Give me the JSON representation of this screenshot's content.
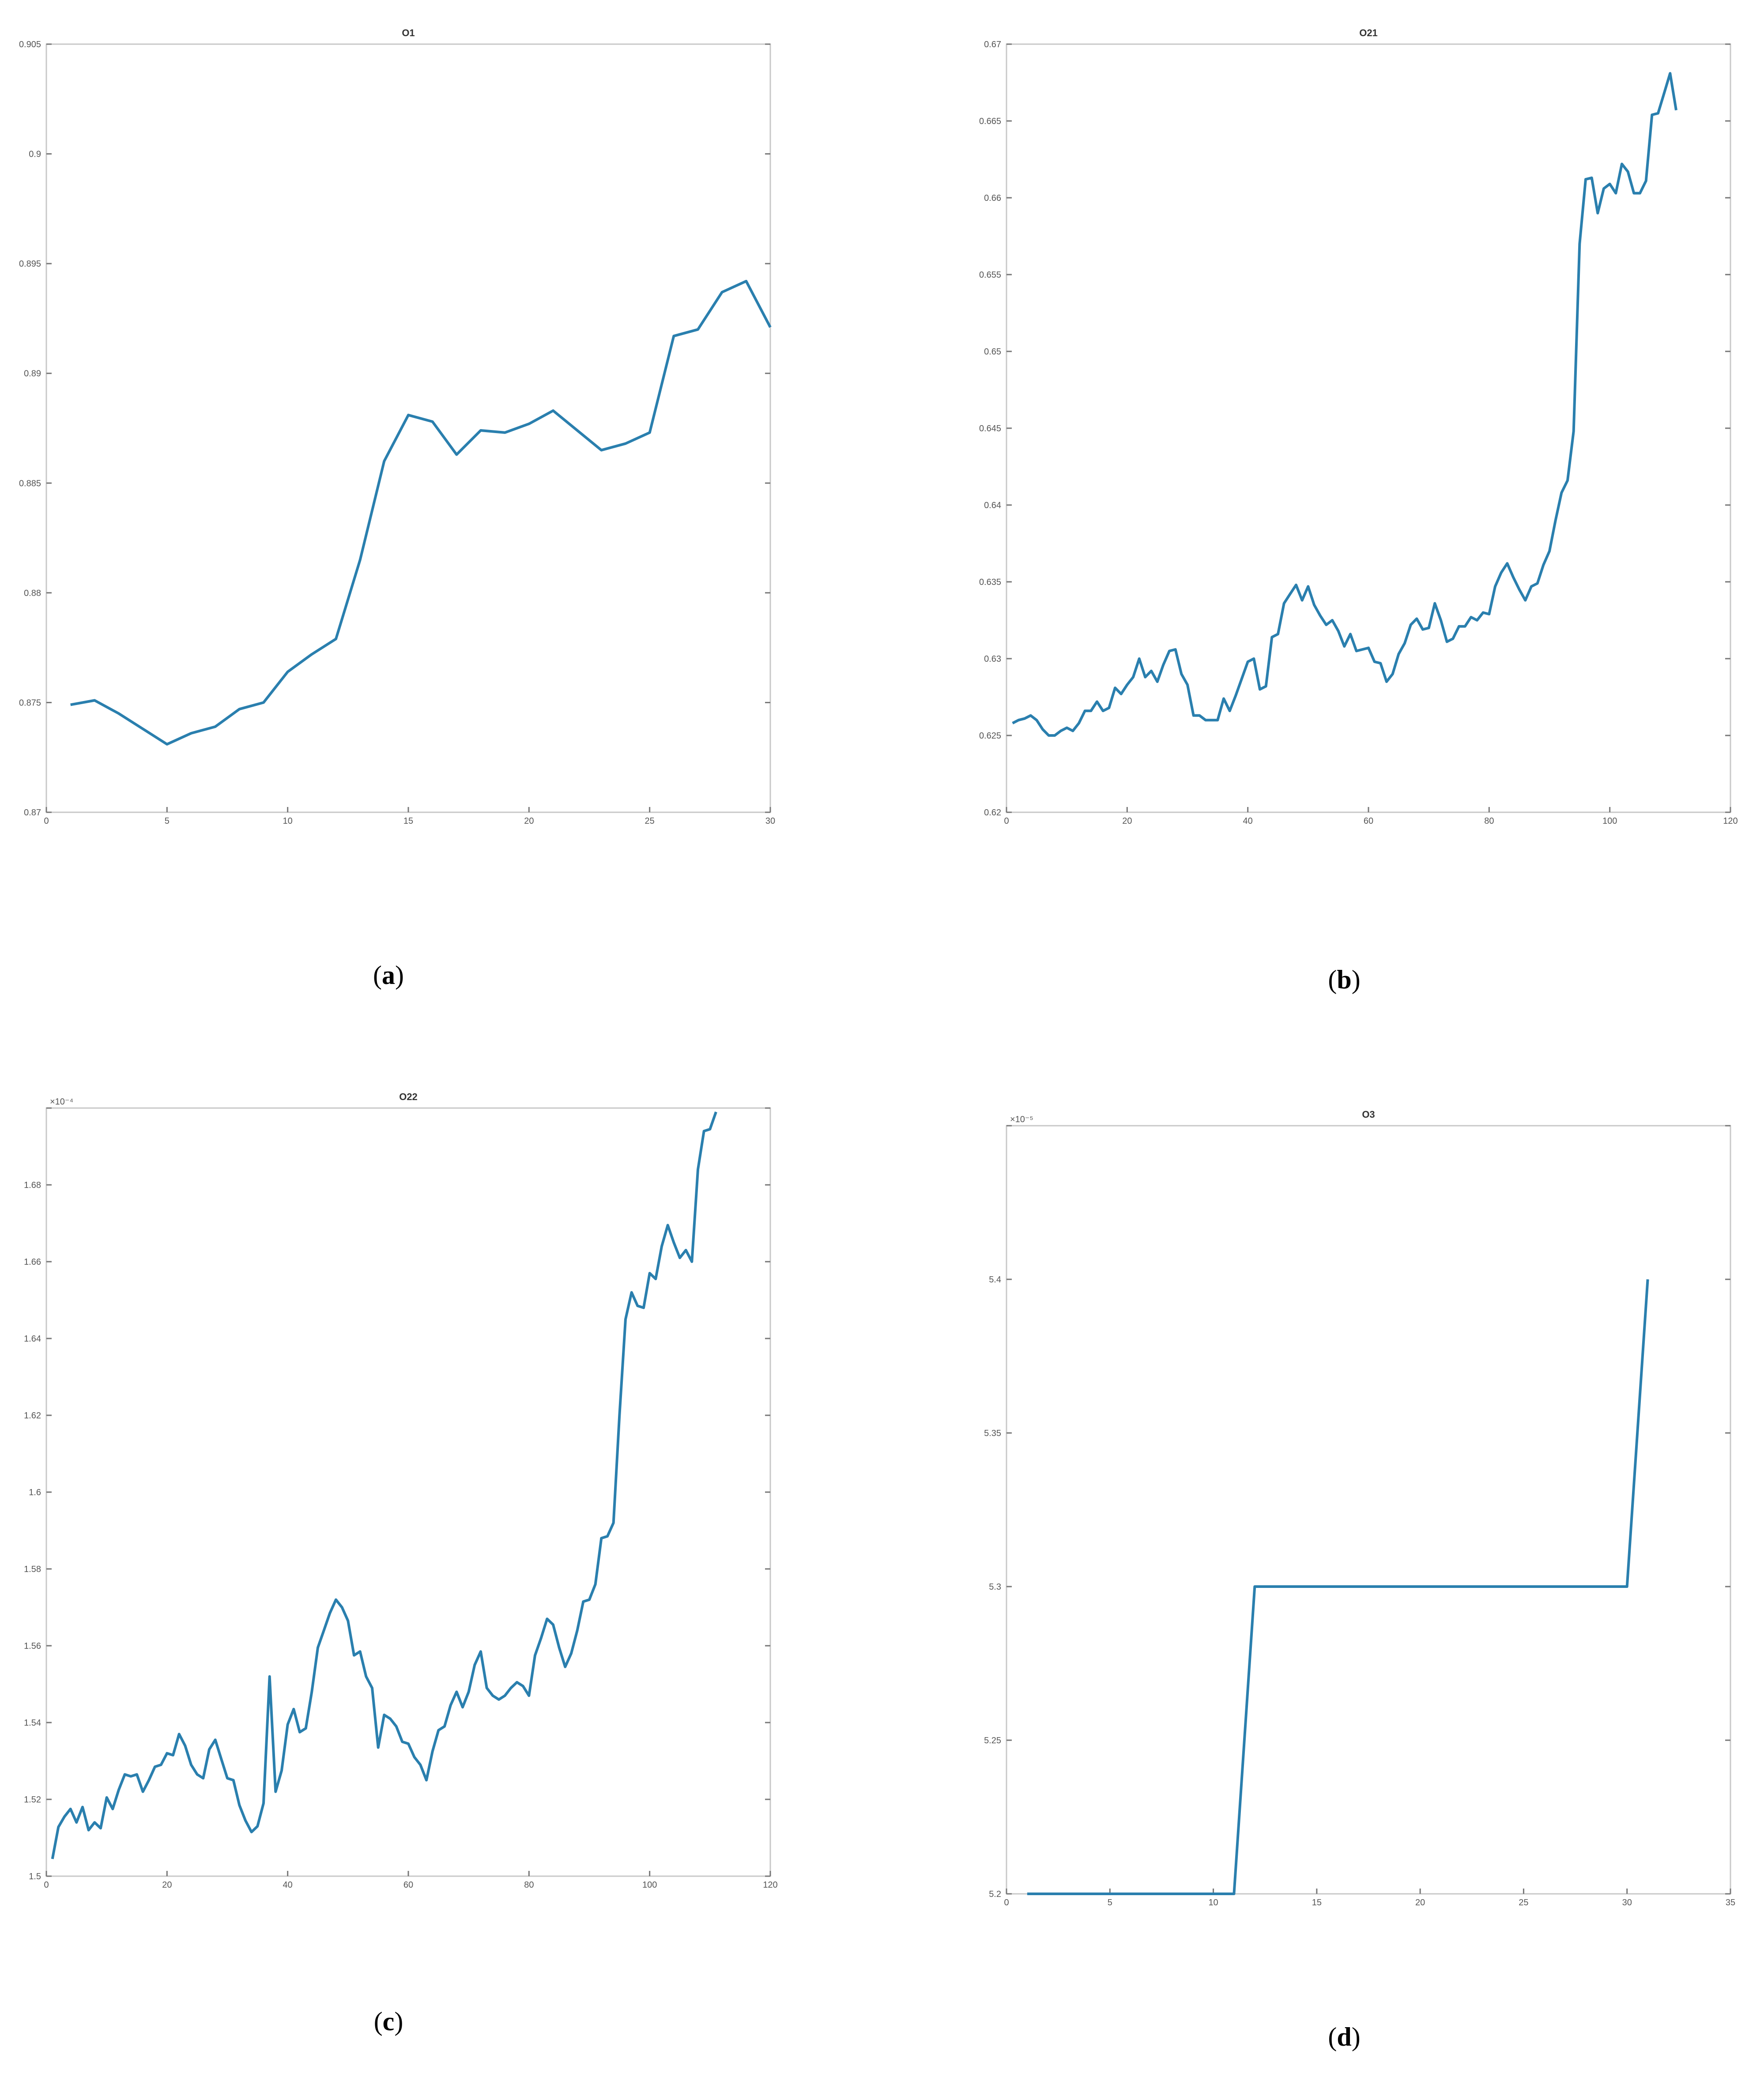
{
  "panels": [
    {
      "caption_letter": "a"
    },
    {
      "caption_letter": "b"
    },
    {
      "caption_letter": "c"
    },
    {
      "caption_letter": "d"
    }
  ],
  "chart_data": [
    {
      "type": "line",
      "title": "O1",
      "xlim": [
        0,
        30
      ],
      "ylim": [
        0.87,
        0.905
      ],
      "xticks": [
        "0",
        "5",
        "10",
        "15",
        "20",
        "25",
        "30"
      ],
      "xtick_values": [
        0,
        5,
        10,
        15,
        20,
        25,
        30
      ],
      "yticks": [
        "0.87",
        "0.875",
        "0.88",
        "0.885",
        "0.89",
        "0.895",
        "0.9",
        "0.905"
      ],
      "ytick_values": [
        0.87,
        0.875,
        0.88,
        0.885,
        0.89,
        0.895,
        0.9,
        0.905
      ],
      "y_exponent": "",
      "color": "#2a7fae",
      "x": [
        1,
        2,
        3,
        4,
        5,
        6,
        7,
        8,
        9,
        10,
        11,
        12,
        13,
        14,
        15,
        16,
        17,
        18,
        19,
        20,
        21,
        22,
        23,
        24,
        25,
        26,
        27,
        28,
        29,
        30
      ],
      "y": [
        0.8749,
        0.8751,
        0.8745,
        0.8738,
        0.8731,
        0.8736,
        0.8739,
        0.8747,
        0.875,
        0.8764,
        0.8772,
        0.8779,
        0.8815,
        0.886,
        0.8881,
        0.8878,
        0.8863,
        0.8874,
        0.8873,
        0.8877,
        0.8883,
        0.8874,
        0.8865,
        0.8868,
        0.8873,
        0.8917,
        0.892,
        0.8937,
        0.8942,
        0.8921
      ]
    },
    {
      "type": "line",
      "title": "O21",
      "xlim": [
        0,
        120
      ],
      "ylim": [
        0.62,
        0.67
      ],
      "xticks": [
        "0",
        "20",
        "40",
        "60",
        "80",
        "100",
        "120"
      ],
      "xtick_values": [
        0,
        20,
        40,
        60,
        80,
        100,
        120
      ],
      "yticks": [
        "0.62",
        "0.625",
        "0.63",
        "0.635",
        "0.64",
        "0.645",
        "0.65",
        "0.655",
        "0.66",
        "0.665",
        "0.67"
      ],
      "ytick_values": [
        0.62,
        0.625,
        0.63,
        0.635,
        0.64,
        0.645,
        0.65,
        0.655,
        0.66,
        0.665,
        0.67
      ],
      "y_exponent": "",
      "color": "#2a7fae",
      "x": [
        1,
        2,
        3,
        4,
        5,
        6,
        7,
        8,
        9,
        10,
        11,
        12,
        13,
        14,
        15,
        16,
        17,
        18,
        19,
        20,
        21,
        22,
        23,
        24,
        25,
        26,
        27,
        28,
        29,
        30,
        31,
        32,
        33,
        34,
        35,
        36,
        37,
        38,
        39,
        40,
        41,
        42,
        43,
        44,
        45,
        46,
        47,
        48,
        49,
        50,
        51,
        52,
        53,
        54,
        55,
        56,
        57,
        58,
        59,
        60,
        61,
        62,
        63,
        64,
        65,
        66,
        67,
        68,
        69,
        70,
        71,
        72,
        73,
        74,
        75,
        76,
        77,
        78,
        79,
        80,
        81,
        82,
        83,
        84,
        85,
        86,
        87,
        88,
        89,
        90,
        91,
        92,
        93,
        94,
        95,
        96,
        97,
        98,
        99,
        100,
        101,
        102,
        103,
        104,
        105,
        106,
        107,
        108,
        109,
        110,
        111
      ],
      "y": [
        0.6258,
        0.626,
        0.6261,
        0.6263,
        0.626,
        0.6254,
        0.625,
        0.625,
        0.6253,
        0.6255,
        0.6253,
        0.6258,
        0.6266,
        0.6266,
        0.6272,
        0.6266,
        0.6268,
        0.6281,
        0.6277,
        0.6283,
        0.6288,
        0.63,
        0.6288,
        0.6292,
        0.6285,
        0.6296,
        0.6305,
        0.6306,
        0.629,
        0.6283,
        0.6263,
        0.6263,
        0.626,
        0.626,
        0.626,
        0.6274,
        0.6266,
        0.6276,
        0.6287,
        0.6298,
        0.63,
        0.628,
        0.6282,
        0.6314,
        0.6316,
        0.6336,
        0.6342,
        0.6348,
        0.6338,
        0.6347,
        0.6335,
        0.6328,
        0.6322,
        0.6325,
        0.6318,
        0.6308,
        0.6316,
        0.6305,
        0.6306,
        0.6307,
        0.6298,
        0.6297,
        0.6285,
        0.629,
        0.6303,
        0.631,
        0.6322,
        0.6326,
        0.6319,
        0.632,
        0.6336,
        0.6325,
        0.6311,
        0.6313,
        0.6321,
        0.6321,
        0.6327,
        0.6325,
        0.633,
        0.6329,
        0.6347,
        0.6356,
        0.6362,
        0.6353,
        0.6345,
        0.6338,
        0.6347,
        0.6349,
        0.6361,
        0.637,
        0.639,
        0.6408,
        0.6416,
        0.6448,
        0.657,
        0.6612,
        0.6613,
        0.659,
        0.6606,
        0.6609,
        0.6603,
        0.6622,
        0.6617,
        0.6603,
        0.6603,
        0.6611,
        0.6654,
        0.6655,
        0.6668,
        0.6681,
        0.6657
      ]
    },
    {
      "type": "line",
      "title": "O22",
      "xlim": [
        0,
        120
      ],
      "ylim": [
        1.5,
        1.7
      ],
      "xticks": [
        "0",
        "20",
        "40",
        "60",
        "80",
        "100",
        "120"
      ],
      "xtick_values": [
        0,
        20,
        40,
        60,
        80,
        100,
        120
      ],
      "yticks": [
        "1.5",
        "1.52",
        "1.54",
        "1.56",
        "1.58",
        "1.6",
        "1.62",
        "1.64",
        "1.66",
        "1.68",
        "1.7"
      ],
      "ytick_values": [
        1.5,
        1.52,
        1.54,
        1.56,
        1.58,
        1.6,
        1.62,
        1.64,
        1.66,
        1.68,
        1.7
      ],
      "y_exponent": "×10⁻⁴",
      "color": "#2a7fae",
      "x": [
        1,
        2,
        3,
        4,
        5,
        6,
        7,
        8,
        9,
        10,
        11,
        12,
        13,
        14,
        15,
        16,
        17,
        18,
        19,
        20,
        21,
        22,
        23,
        24,
        25,
        26,
        27,
        28,
        29,
        30,
        31,
        32,
        33,
        34,
        35,
        36,
        37,
        38,
        39,
        40,
        41,
        42,
        43,
        44,
        45,
        46,
        47,
        48,
        49,
        50,
        51,
        52,
        53,
        54,
        55,
        56,
        57,
        58,
        59,
        60,
        61,
        62,
        63,
        64,
        65,
        66,
        67,
        68,
        69,
        70,
        71,
        72,
        73,
        74,
        75,
        76,
        77,
        78,
        79,
        80,
        81,
        82,
        83,
        84,
        85,
        86,
        87,
        88,
        89,
        90,
        91,
        92,
        93,
        94,
        95,
        96,
        97,
        98,
        99,
        100,
        101,
        102,
        103,
        104,
        105,
        106,
        107,
        108,
        109,
        110,
        111
      ],
      "y": [
        1.5045,
        1.5128,
        1.5155,
        1.5175,
        1.514,
        1.518,
        1.512,
        1.514,
        1.5125,
        1.5205,
        1.5175,
        1.5225,
        1.5265,
        1.526,
        1.5265,
        1.522,
        1.525,
        1.5285,
        1.529,
        1.532,
        1.5315,
        1.537,
        1.534,
        1.529,
        1.5265,
        1.5255,
        1.533,
        1.5355,
        1.5305,
        1.5255,
        1.525,
        1.5185,
        1.5145,
        1.5115,
        1.513,
        1.519,
        1.552,
        1.522,
        1.5275,
        1.5395,
        1.5435,
        1.5375,
        1.5385,
        1.548,
        1.5595,
        1.564,
        1.5685,
        1.572,
        1.57,
        1.5665,
        1.5575,
        1.5585,
        1.552,
        1.549,
        1.5335,
        1.542,
        1.541,
        1.539,
        1.535,
        1.5345,
        1.531,
        1.529,
        1.525,
        1.5325,
        1.538,
        1.539,
        1.5445,
        1.548,
        1.544,
        1.548,
        1.555,
        1.5585,
        1.549,
        1.547,
        1.546,
        1.547,
        1.549,
        1.5505,
        1.5495,
        1.547,
        1.5575,
        1.562,
        1.567,
        1.5655,
        1.5595,
        1.5545,
        1.558,
        1.564,
        1.5715,
        1.572,
        1.576,
        1.588,
        1.5885,
        1.592,
        1.62,
        1.645,
        1.652,
        1.6485,
        1.648,
        1.657,
        1.6555,
        1.664,
        1.6695,
        1.665,
        1.661,
        1.663,
        1.66,
        1.684,
        1.694,
        1.6945,
        1.699
      ]
    },
    {
      "type": "line",
      "title": "O3",
      "xlim": [
        0,
        35
      ],
      "ylim": [
        5.2,
        5.45
      ],
      "xticks": [
        "0",
        "5",
        "10",
        "15",
        "20",
        "25",
        "30",
        "35"
      ],
      "xtick_values": [
        0,
        5,
        10,
        15,
        20,
        25,
        30,
        35
      ],
      "yticks": [
        "5.2",
        "5.25",
        "5.3",
        "5.35",
        "5.4",
        "5.45"
      ],
      "ytick_values": [
        5.2,
        5.25,
        5.3,
        5.35,
        5.4,
        5.45
      ],
      "y_exponent": "×10⁻⁵",
      "color": "#2a7fae",
      "x": [
        1,
        2,
        3,
        4,
        5,
        6,
        7,
        8,
        9,
        10,
        11,
        12,
        13,
        14,
        15,
        16,
        17,
        18,
        19,
        20,
        21,
        22,
        23,
        24,
        25,
        26,
        27,
        28,
        29,
        30,
        31
      ],
      "y": [
        5.2,
        5.2,
        5.2,
        5.2,
        5.2,
        5.2,
        5.2,
        5.2,
        5.2,
        5.2,
        5.2,
        5.3,
        5.3,
        5.3,
        5.3,
        5.3,
        5.3,
        5.3,
        5.3,
        5.3,
        5.3,
        5.3,
        5.3,
        5.3,
        5.3,
        5.3,
        5.3,
        5.3,
        5.3,
        5.3,
        5.4
      ]
    }
  ]
}
